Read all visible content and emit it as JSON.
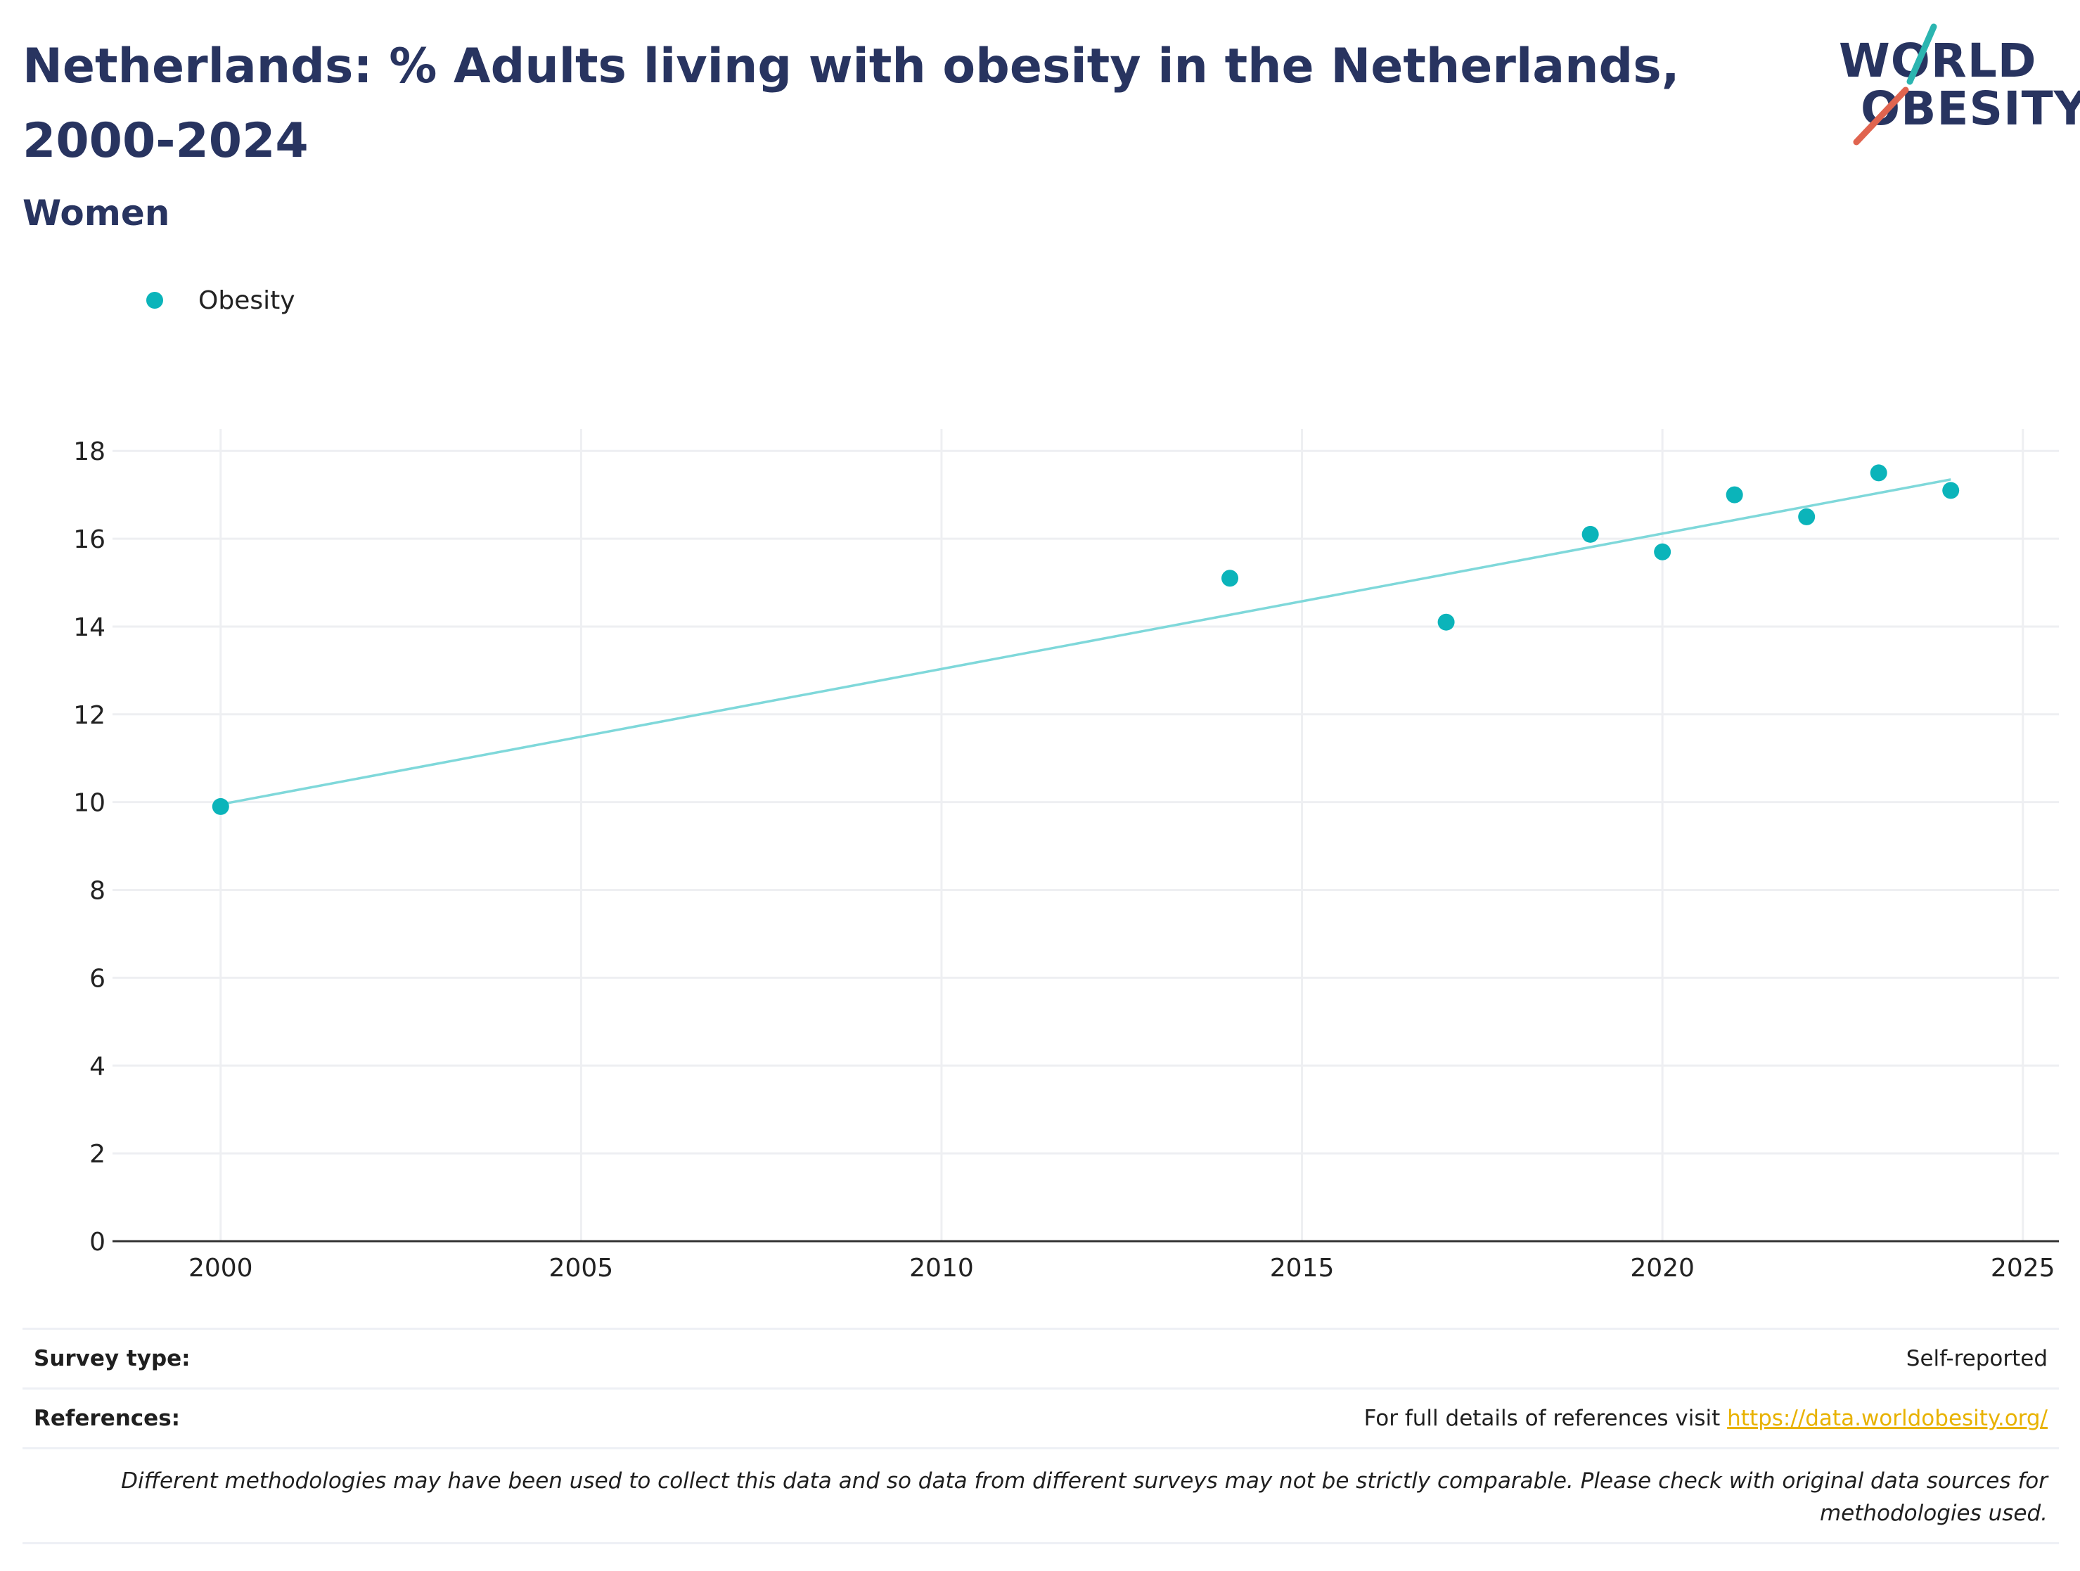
{
  "header": {
    "title": "Netherlands: % Adults living with obesity in the Netherlands, 2000-2024",
    "subtitle": "Women"
  },
  "logo": {
    "line1": "WORLD",
    "line2": "OBESITY",
    "accent_teal": "#2BB5B0",
    "accent_red": "#E0644F"
  },
  "legend": {
    "label": "Obesity"
  },
  "colors": {
    "marker": "#0BB4BA",
    "trendline": "#7FD8DA",
    "grid": "#EEEFF2",
    "title": "#283460"
  },
  "chart_data": {
    "type": "scatter",
    "title": "Netherlands: % Adults living with obesity in the Netherlands, 2000-2024",
    "subtitle": "Women",
    "xlabel": "",
    "ylabel": "",
    "xlim": [
      1998.5,
      2025.5
    ],
    "ylim": [
      0,
      18.5
    ],
    "xticks": [
      2000,
      2005,
      2010,
      2015,
      2020,
      2025
    ],
    "yticks": [
      0,
      2,
      4,
      6,
      8,
      10,
      12,
      14,
      16,
      18
    ],
    "grid": true,
    "legend_position": "top-left",
    "series": [
      {
        "name": "Obesity",
        "x": [
          2000,
          2014,
          2017,
          2019,
          2020,
          2021,
          2022,
          2023,
          2024
        ],
        "y": [
          9.9,
          15.1,
          14.1,
          16.1,
          15.7,
          17.0,
          16.5,
          17.5,
          17.1
        ]
      }
    ],
    "trendline": {
      "x": [
        2000,
        2024
      ],
      "y": [
        9.95,
        17.35
      ]
    }
  },
  "footer": {
    "survey_type_label": "Survey type:",
    "survey_type_value": "Self-reported",
    "references_label": "References:",
    "references_text": "For full details of references visit ",
    "references_link": "https://data.worldobesity.org/",
    "disclaimer": "Different methodologies may have been used to collect this data and so data from different surveys may not be strictly comparable. Please check with original data sources for methodologies used."
  }
}
